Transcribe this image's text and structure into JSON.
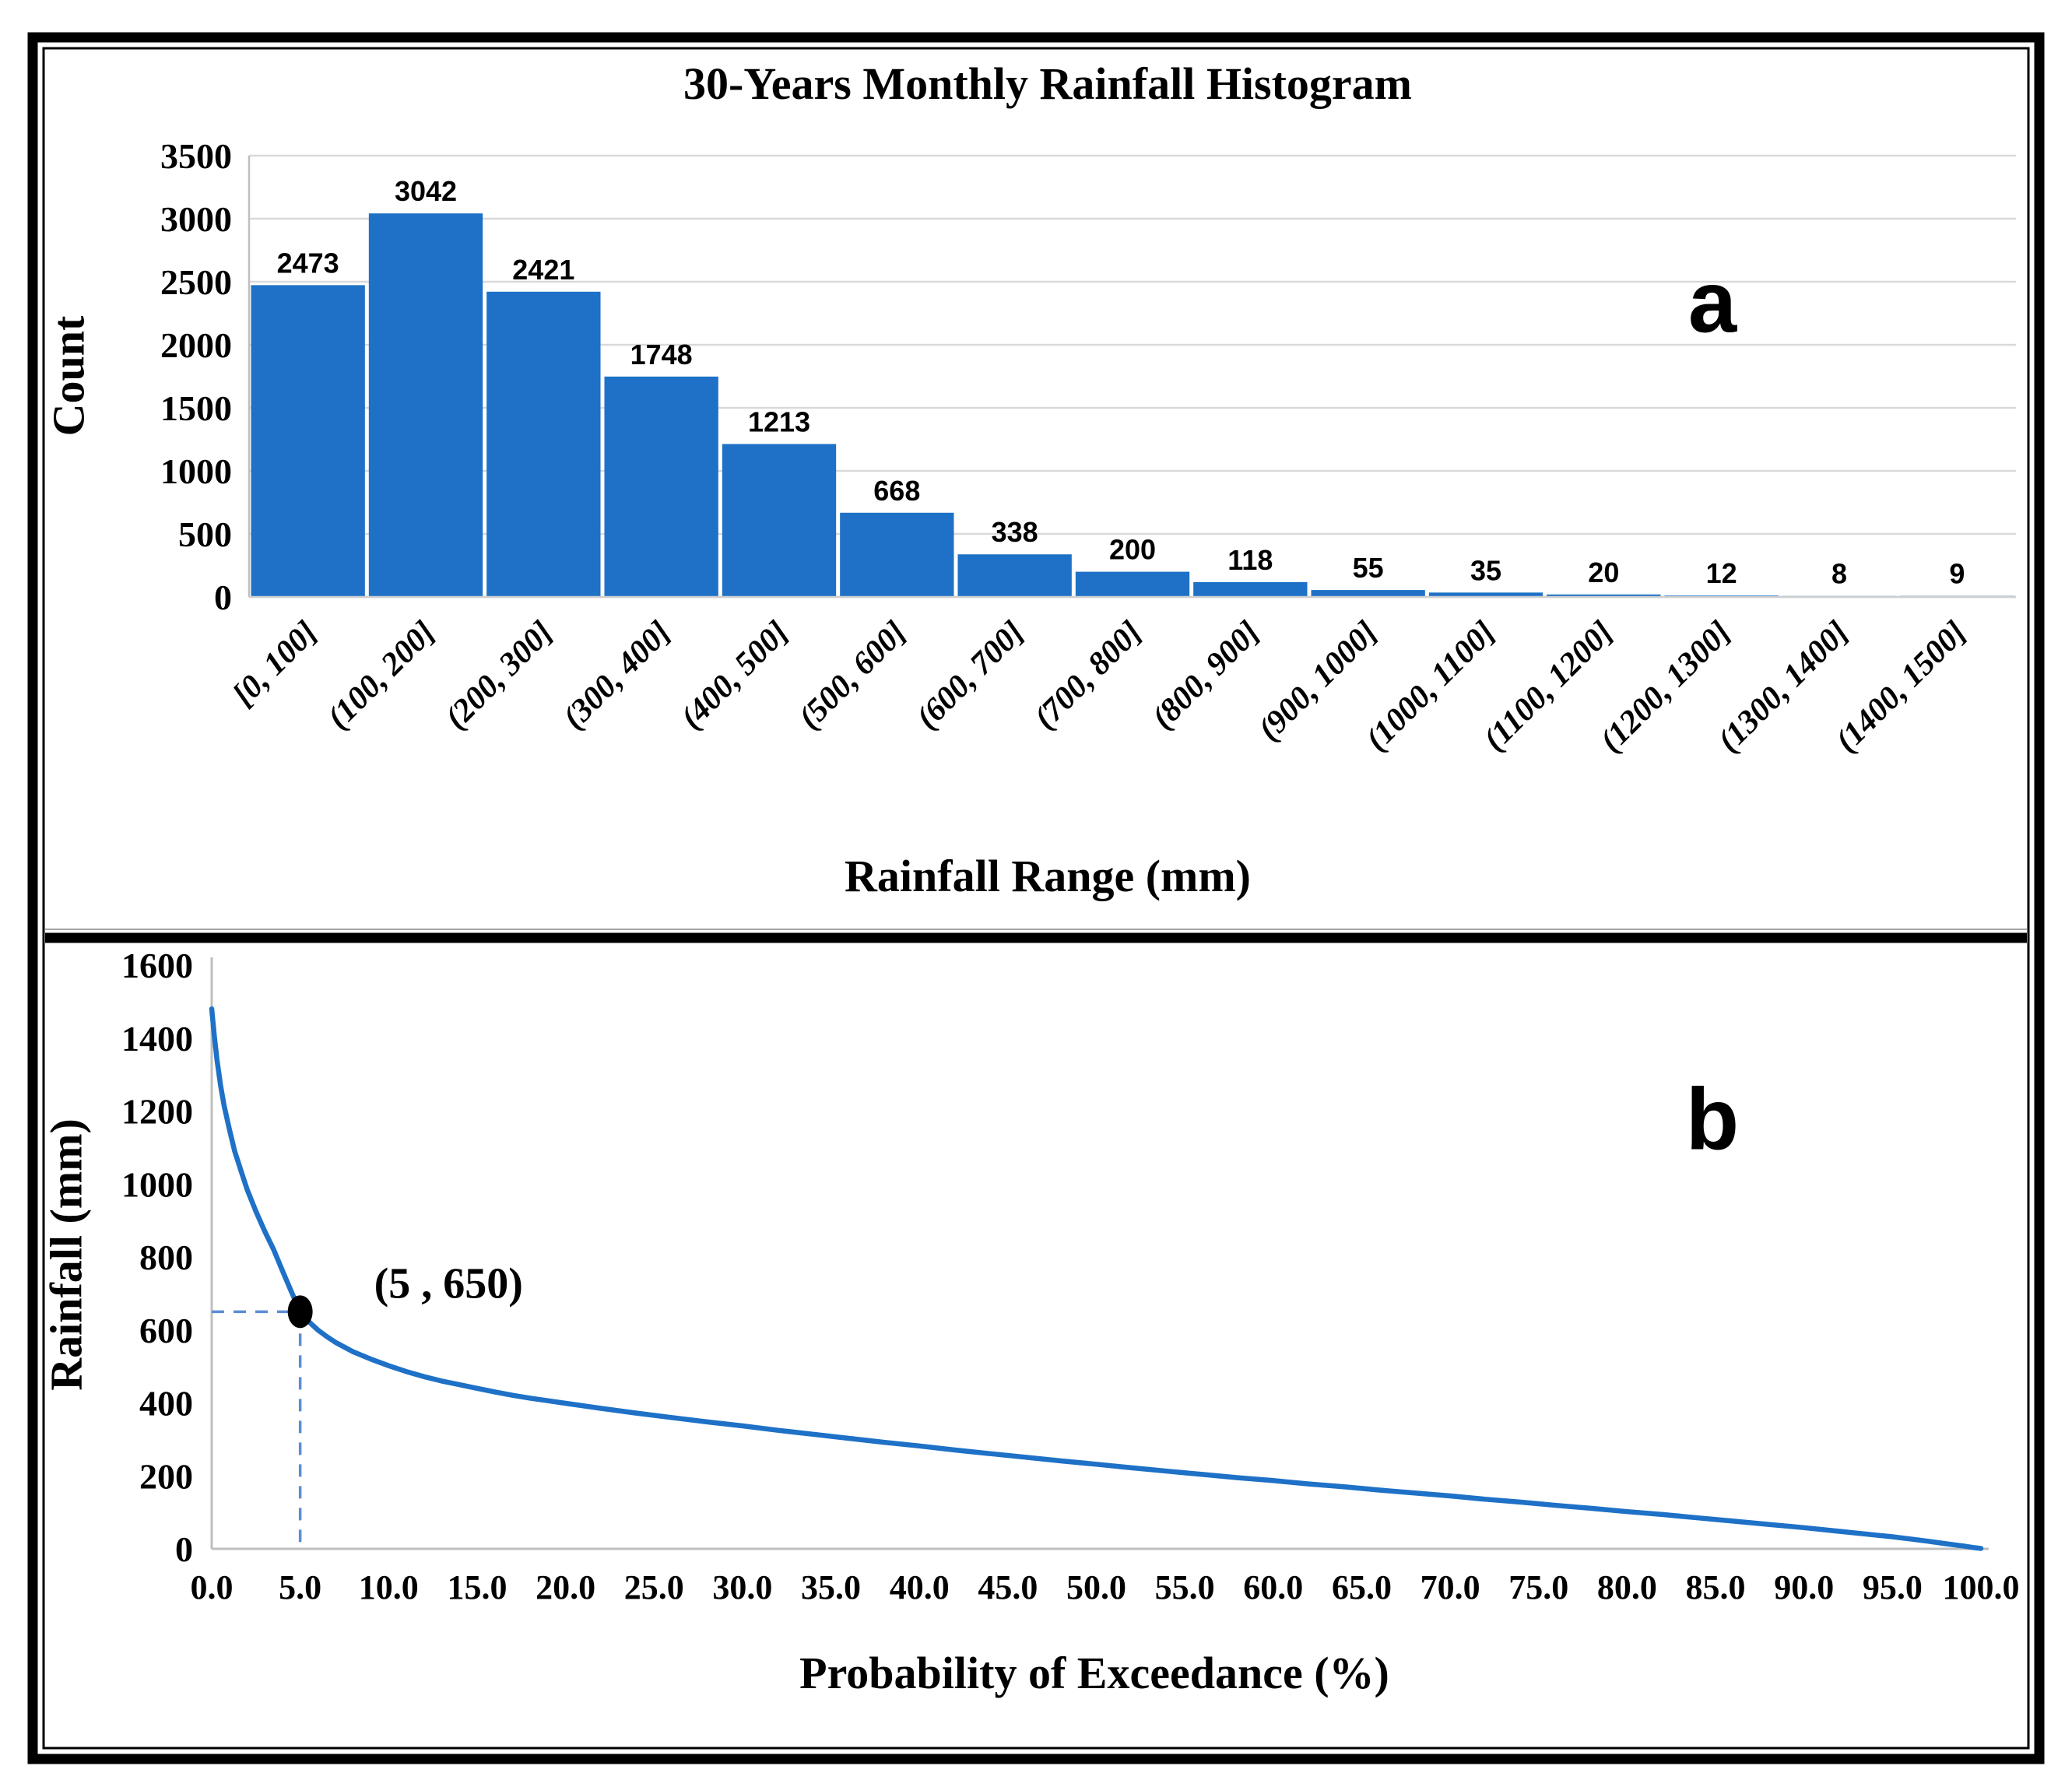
{
  "figure": {
    "background": "#ffffff",
    "frame_color": "#000000",
    "panel_a_letter": "a",
    "panel_b_letter": "b"
  },
  "chart_data": [
    {
      "id": "monthly-rainfall-histogram",
      "type": "bar",
      "panel_label": "a",
      "title": "30-Years Monthly Rainfall Histogram",
      "xlabel": "Rainfall Range (mm)",
      "ylabel": "Count",
      "categories": [
        "[0, 100]",
        "(100, 200]",
        "(200, 300]",
        "(300, 400]",
        "(400, 500]",
        "(500, 600]",
        "(600, 700]",
        "(700, 800]",
        "(800, 900]",
        "(900, 1000]",
        "(1000, 1100]",
        "(1100, 1200]",
        "(1200, 1300]",
        "(1300, 1400]",
        "(1400, 1500]"
      ],
      "values": [
        2473,
        3042,
        2421,
        1748,
        1213,
        668,
        338,
        200,
        118,
        55,
        35,
        20,
        12,
        8,
        9
      ],
      "ylim": [
        0,
        3500
      ],
      "yticks": [
        0,
        500,
        1000,
        1500,
        2000,
        2500,
        3000,
        3500
      ],
      "grid": true,
      "legend": "none",
      "bar_color": "#1e71c6",
      "gridline_color": "#d9d9d9",
      "axisline_color": "#bfbfbf"
    },
    {
      "id": "probability-of-exceedance-curve",
      "type": "line",
      "panel_label": "b",
      "title": "",
      "xlabel": "Probability of Exceedance (%)",
      "ylabel": "Rainfall (mm)",
      "xlim": [
        0,
        100
      ],
      "ylim": [
        0,
        1600
      ],
      "xtick_labels": [
        "0.0",
        "5.0",
        "10.0",
        "15.0",
        "20.0",
        "25.0",
        "30.0",
        "35.0",
        "40.0",
        "45.0",
        "50.0",
        "55.0",
        "60.0",
        "65.0",
        "70.0",
        "75.0",
        "80.0",
        "85.0",
        "90.0",
        "95.0",
        "100.0"
      ],
      "xtick_values": [
        0,
        5,
        10,
        15,
        20,
        25,
        30,
        35,
        40,
        45,
        50,
        55,
        60,
        65,
        70,
        75,
        80,
        85,
        90,
        95,
        100
      ],
      "yticks": [
        0,
        200,
        400,
        600,
        800,
        1000,
        1200,
        1400,
        1600
      ],
      "grid": false,
      "legend": "none",
      "line_color": "#1e71c6",
      "guide_color": "#5b8dd3",
      "marker_color": "#000000",
      "annotation": {
        "x": 5,
        "y": 650,
        "label": "(5 , 650)"
      },
      "series": [
        {
          "name": "monthly-rainfall-exceedance",
          "points": [
            [
              0,
              1480
            ],
            [
              0.15,
              1405
            ],
            [
              0.3,
              1340
            ],
            [
              0.5,
              1270
            ],
            [
              0.7,
              1215
            ],
            [
              1,
              1150
            ],
            [
              1.3,
              1090
            ],
            [
              1.7,
              1030
            ],
            [
              2,
              985
            ],
            [
              2.5,
              925
            ],
            [
              3,
              870
            ],
            [
              3.5,
              820
            ],
            [
              4,
              762
            ],
            [
              4.5,
              705
            ],
            [
              5,
              650
            ],
            [
              5.5,
              622
            ],
            [
              6,
              600
            ],
            [
              6.5,
              582
            ],
            [
              7,
              566
            ],
            [
              8,
              540
            ],
            [
              9,
              520
            ],
            [
              10,
              502
            ],
            [
              11,
              486
            ],
            [
              12,
              472
            ],
            [
              13,
              460
            ],
            [
              14,
              450
            ],
            [
              15,
              440
            ],
            [
              16,
              430
            ],
            [
              17,
              421
            ],
            [
              18,
              413
            ],
            [
              19,
              406
            ],
            [
              20,
              399
            ],
            [
              22,
              385
            ],
            [
              24,
              372
            ],
            [
              26,
              360
            ],
            [
              28,
              348
            ],
            [
              30,
              337
            ],
            [
              32,
              325
            ],
            [
              34,
              314
            ],
            [
              36,
              303
            ],
            [
              38,
              292
            ],
            [
              40,
              282
            ],
            [
              42,
              271
            ],
            [
              44,
              261
            ],
            [
              46,
              251
            ],
            [
              48,
              241
            ],
            [
              50,
              232
            ],
            [
              52,
              222
            ],
            [
              54,
              213
            ],
            [
              56,
              204
            ],
            [
              58,
              195
            ],
            [
              60,
              187
            ],
            [
              62,
              178
            ],
            [
              64,
              170
            ],
            [
              66,
              161
            ],
            [
              68,
              153
            ],
            [
              70,
              145
            ],
            [
              72,
              136
            ],
            [
              74,
              128
            ],
            [
              76,
              119
            ],
            [
              78,
              111
            ],
            [
              80,
              102
            ],
            [
              82,
              94
            ],
            [
              84,
              85
            ],
            [
              86,
              76
            ],
            [
              88,
              67
            ],
            [
              90,
              58
            ],
            [
              92,
              48
            ],
            [
              94,
              38
            ],
            [
              95,
              33
            ],
            [
              96,
              27
            ],
            [
              97,
              21
            ],
            [
              98,
              14
            ],
            [
              99,
              8
            ],
            [
              99.5,
              4
            ],
            [
              100,
              1
            ]
          ]
        }
      ]
    }
  ]
}
